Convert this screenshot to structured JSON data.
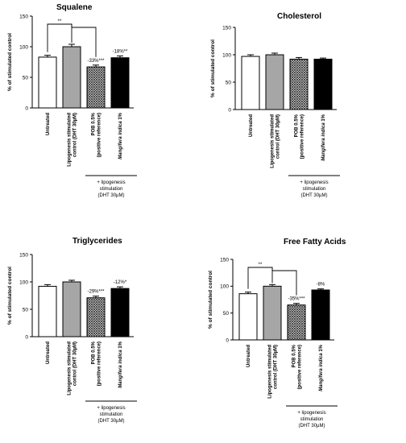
{
  "chart_data": [
    {
      "type": "bar",
      "title": "Squalene",
      "ylabel": "% of  stimulated control",
      "ylim": [
        0,
        150
      ],
      "yticks": [
        "0",
        "50",
        "100",
        "150"
      ],
      "categories": [
        "Untreated",
        "Lipogenesis stimulated|control (DHT 30µM)",
        "POB 0.5%|(positive reference)",
        "Mangifera indica 1%"
      ],
      "values": [
        83,
        100,
        67,
        82
      ],
      "errors": [
        3,
        4,
        3,
        3
      ],
      "annotations": [
        "",
        "",
        "-33%***",
        "-18%**"
      ],
      "significance": "**",
      "stimulation_label": [
        "+ lipogenesis",
        "stimulation",
        "(DHT 30µM)"
      ]
    },
    {
      "type": "bar",
      "title": "Cholesterol",
      "ylabel": "% of  stimulated control",
      "ylim": [
        0,
        150
      ],
      "yticks": [
        "0",
        "50",
        "100",
        "150"
      ],
      "categories": [
        "Untreated",
        "Lipogenesis stimulated|control (DHT 30µM)",
        "POB 0.5%|(positive reference)",
        "Mangifera indica 1%"
      ],
      "values": [
        97,
        100,
        92,
        92
      ],
      "errors": [
        3,
        3,
        3,
        2
      ],
      "annotations": [
        "",
        "",
        "",
        ""
      ],
      "significance": "",
      "stimulation_label": [
        "+ lipogenesis",
        "stimulation",
        "(DHT 30µM)"
      ]
    },
    {
      "type": "bar",
      "title": "Triglycerides",
      "ylabel": "% of  stimulated control",
      "ylim": [
        0,
        150
      ],
      "yticks": [
        "0",
        "50",
        "100",
        "150"
      ],
      "categories": [
        "Untreated",
        "Lipogenesis stimulated|control (DHT 30µM)",
        "POB 0.5%|(positive reference)",
        "Mangifera indica 1%"
      ],
      "values": [
        92,
        100,
        71,
        88
      ],
      "errors": [
        3,
        3,
        3,
        3
      ],
      "annotations": [
        "",
        "",
        "-29%***",
        "-12%*"
      ],
      "significance": "",
      "stimulation_label": [
        "+ lipogenesis",
        "stimulation",
        "(DHT 30µM)"
      ]
    },
    {
      "type": "bar",
      "title": "Free  Fatty Acids",
      "ylabel": "% of  stimulated control",
      "ylim": [
        0,
        150
      ],
      "yticks": [
        "0",
        "50",
        "100",
        "150"
      ],
      "categories": [
        "Untreated",
        "Lipogenesis stimulated|control (DHT 30µM)",
        "POB 0.5%|(positive reference)",
        "Mangifera indica 1%"
      ],
      "values": [
        86,
        100,
        65,
        93
      ],
      "errors": [
        3,
        3,
        3,
        2
      ],
      "annotations": [
        "",
        "",
        "-35%***",
        "-8%"
      ],
      "significance": "**",
      "stimulation_label": [
        "+ lipogenesis",
        "stimulation",
        "(DHT 30µM)"
      ]
    }
  ],
  "colors": {
    "untreated": "#ffffff",
    "stimulated": "#a6a6a6",
    "pob": "#7a7a7a",
    "mangifera": "#000000",
    "stroke": "#000000"
  }
}
